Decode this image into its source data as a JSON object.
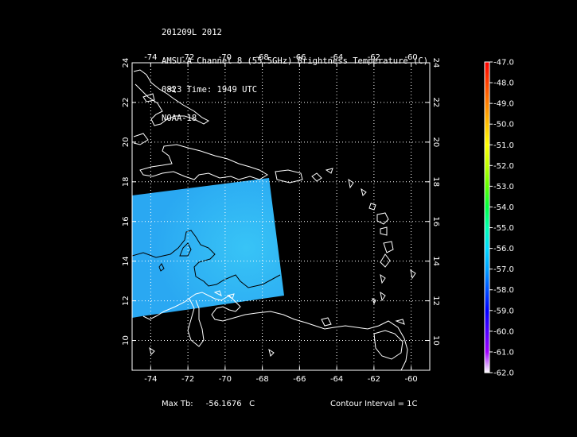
{
  "title": {
    "line1": "201209L 2012",
    "line2": "AMSU-A Channel 8 (55.5GHz) Brightness Temperature (C)",
    "line3": "0823 Time: 1949 UTC",
    "line4": "NOAA-18"
  },
  "map": {
    "lon_ticks": [
      "-74",
      "-72",
      "-70",
      "-68",
      "-66",
      "-64",
      "-62",
      "-60"
    ],
    "lat_ticks": [
      "10",
      "12",
      "14",
      "16",
      "18",
      "20",
      "22",
      "24"
    ],
    "lon_range": [
      -75,
      -59
    ],
    "lat_range": [
      8.5,
      24
    ],
    "grid": "dotted",
    "coastline_color": "#ffffff",
    "swath_color": "#30b6f4",
    "contour_color": "#000000"
  },
  "colorbar": {
    "labels": [
      "-47.0",
      "-48.0",
      "-49.0",
      "-50.0",
      "-51.0",
      "-52.0",
      "-53.0",
      "-54.0",
      "-55.0",
      "-56.0",
      "-57.0",
      "-58.0",
      "-59.0",
      "-60.0",
      "-61.0",
      "-62.0"
    ],
    "colors": [
      "#ff0000",
      "#ff4000",
      "#ff8000",
      "#ffbf00",
      "#ffff00",
      "#bfff00",
      "#60ff00",
      "#00ff40",
      "#00ffb0",
      "#00d8ff",
      "#00a0ff",
      "#0050ff",
      "#0000ff",
      "#5000ff",
      "#a000ff",
      "#ffffff"
    ]
  },
  "footer": {
    "max_tb_label": "Max Tb:",
    "max_tb_value": "-56.1676",
    "max_tb_unit": "C",
    "contour_text": "Contour Interval = 1C"
  }
}
